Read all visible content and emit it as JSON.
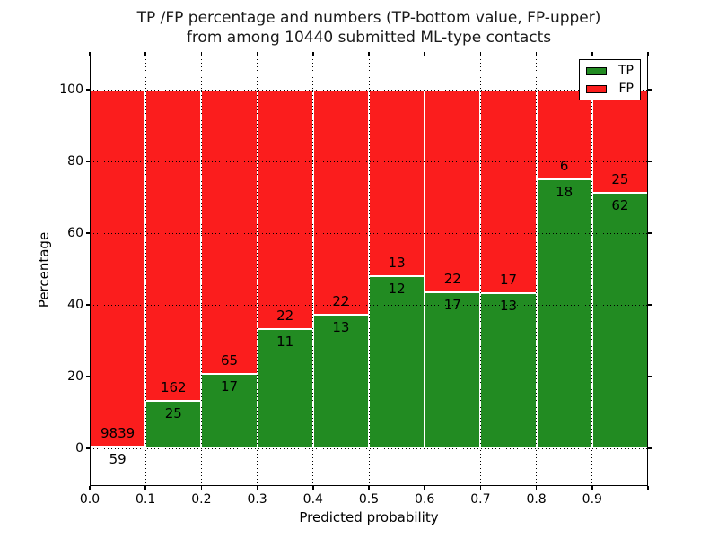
{
  "figure": {
    "title_line1": "TP /FP percentage and numbers (TP-bottom value, FP-upper)",
    "title_line2": "from among 10440 submitted ML-type contacts",
    "ylabel": "Percentage",
    "xlabel": "Predicted probability"
  },
  "chart_data": {
    "type": "bar",
    "stacked": true,
    "title": "TP /FP percentage and numbers (TP-bottom value, FP-upper) from among 10440 submitted ML-type contacts",
    "xlabel": "Predicted probability",
    "ylabel": "Percentage",
    "total_contacts": 10440,
    "categories": [
      "0.0-0.1",
      "0.1-0.2",
      "0.2-0.3",
      "0.3-0.4",
      "0.4-0.5",
      "0.5-0.6",
      "0.6-0.7",
      "0.7-0.8",
      "0.8-0.9",
      "0.9-1.0"
    ],
    "series": [
      {
        "name": "TP",
        "color": "#228b22",
        "counts": [
          59,
          25,
          17,
          11,
          13,
          12,
          17,
          13,
          18,
          62
        ],
        "pct": [
          0.6,
          13.37,
          20.73,
          33.33,
          37.14,
          48.0,
          43.59,
          43.33,
          75.0,
          71.26
        ]
      },
      {
        "name": "FP",
        "color": "#fb1d1d",
        "counts": [
          9839,
          162,
          65,
          22,
          22,
          13,
          22,
          17,
          6,
          25
        ],
        "pct": [
          99.4,
          86.63,
          79.27,
          66.67,
          62.86,
          52.0,
          56.41,
          56.67,
          25.0,
          28.74
        ]
      }
    ],
    "xticks": [
      "0.0",
      "0.1",
      "0.2",
      "0.3",
      "0.4",
      "0.5",
      "0.6",
      "0.7",
      "0.8",
      "0.9"
    ],
    "yticks": [
      0,
      20,
      40,
      60,
      80,
      100
    ],
    "xlim": [
      0.0,
      1.0
    ],
    "ylim": [
      -10.5,
      109.5
    ],
    "grid": "dotted",
    "legend_position": "upper right"
  }
}
